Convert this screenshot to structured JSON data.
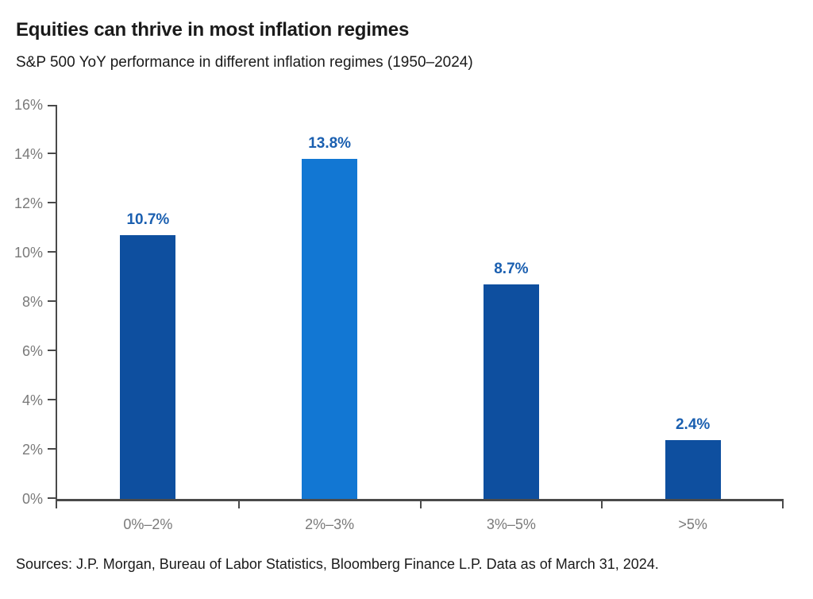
{
  "header": {
    "title": "Equities can thrive in most inflation regimes",
    "subtitle": "S&P 500 YoY performance in different inflation regimes (1950–2024)"
  },
  "footer": {
    "sources": "Sources: J.P. Morgan, Bureau of Labor Statistics, Bloomberg Finance L.P. Data as of March 31, 2024."
  },
  "chart_data": {
    "type": "bar",
    "title": "Equities can thrive in most inflation regimes",
    "subtitle": "S&P 500 YoY performance in different inflation regimes (1950–2024)",
    "categories": [
      "0%–2%",
      "2%–3%",
      "3%–5%",
      ">5%"
    ],
    "values": [
      10.7,
      13.8,
      8.7,
      2.4
    ],
    "value_labels": [
      "10.7%",
      "13.8%",
      "8.7%",
      "2.4%"
    ],
    "bar_colors": [
      "#0e4f9f",
      "#1277d3",
      "#0e4f9f",
      "#0e4f9f"
    ],
    "xlabel": "",
    "ylabel": "",
    "ylim": [
      0,
      16
    ],
    "ytick_labels": [
      "0%",
      "2%",
      "4%",
      "6%",
      "8%",
      "10%",
      "12%",
      "14%",
      "16%"
    ],
    "grid": false,
    "legend": null,
    "colors": {
      "axis": "#4a4a4a",
      "tick_label": "#7a7a7a",
      "value_label": "#1a5fb0",
      "title": "#1a1a1a",
      "bar_default": "#0e4f9f",
      "bar_highlight": "#1277d3"
    }
  }
}
